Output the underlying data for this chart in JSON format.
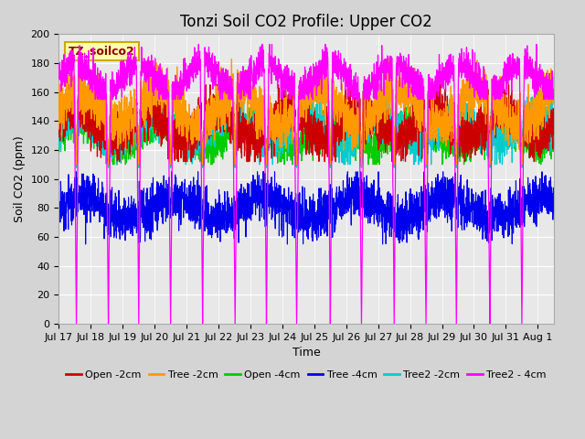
{
  "title": "Tonzi Soil CO2 Profile: Upper CO2",
  "ylabel": "Soil CO2 (ppm)",
  "xlabel": "Time",
  "dataset_label": "TZ_soilco2",
  "ylim": [
    0,
    200
  ],
  "tick_labels": [
    "Jul 17",
    "Jul 18",
    "Jul 19",
    "Jul 20",
    "Jul 21",
    "Jul 22",
    "Jul 23",
    "Jul 24",
    "Jul 25",
    "Jul 26",
    "Jul 27",
    "Jul 28",
    "Jul 29",
    "Jul 30",
    "Jul 31",
    "Aug 1"
  ],
  "series_colors": {
    "open2": "#cc0000",
    "tree2": "#ff9900",
    "open4": "#00cc00",
    "tree4": "#0000ee",
    "tree2_2": "#00cccc",
    "tree2_4": "#ff00ff"
  },
  "fig_bg": "#d4d4d4",
  "plot_bg": "#e8e8e8",
  "grid_color": "#ffffff",
  "title_fontsize": 12,
  "label_fontsize": 9,
  "tick_fontsize": 8,
  "legend_fontsize": 8
}
